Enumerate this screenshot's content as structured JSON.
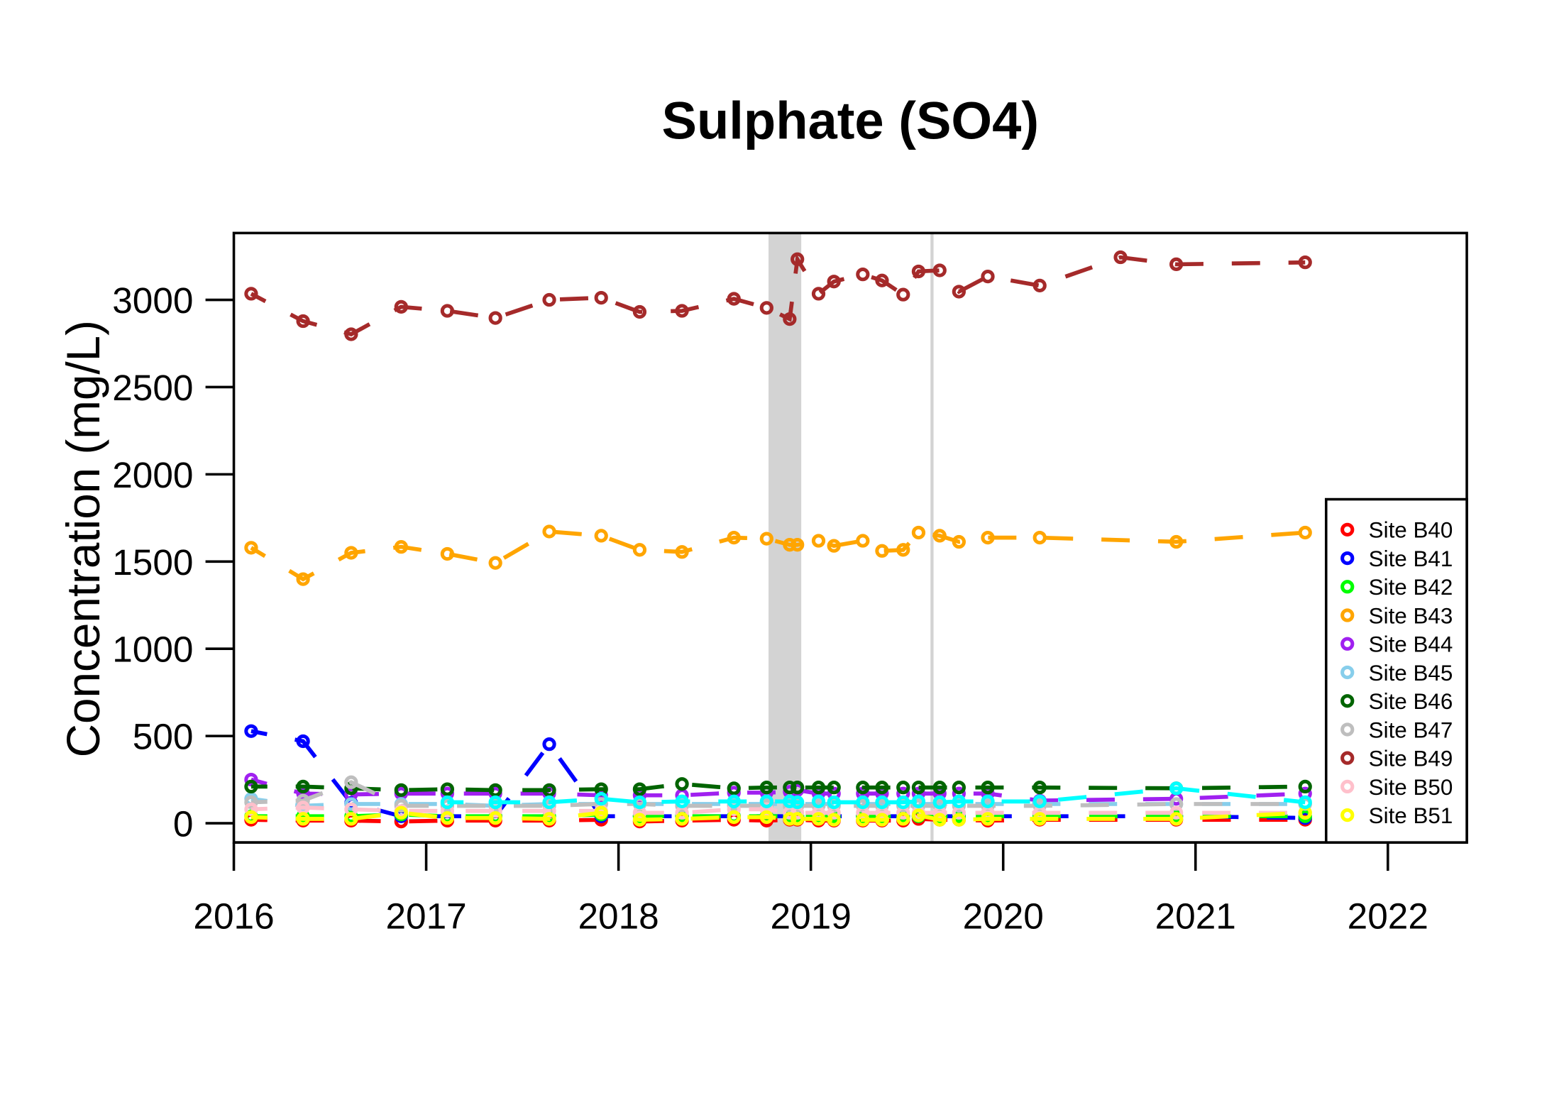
{
  "chart_data": {
    "type": "line",
    "title": "Sulphate (SO4)",
    "xlabel": "",
    "ylabel": "Concentration (mg/L)",
    "xlim": [
      2016,
      2022.4
    ],
    "ylim": [
      -100,
      3380
    ],
    "x_ticks": [
      "2016",
      "2017",
      "2018",
      "2019",
      "2020",
      "2021",
      "2022"
    ],
    "y_ticks": [
      "0",
      "500",
      "1000",
      "1500",
      "2000",
      "2500",
      "3000"
    ],
    "grid": false,
    "legend_position": "bottom-right",
    "shaded_period": {
      "from": 2018.78,
      "to": 2018.95,
      "color": "#d3d3d3"
    },
    "reference_line": {
      "x": 2019.63,
      "color": "#d3d3d3"
    },
    "x": [
      2016.09,
      2016.36,
      2016.61,
      2016.87,
      2017.11,
      2017.36,
      2017.64,
      2017.91,
      2018.11,
      2018.33,
      2018.6,
      2018.77,
      2018.89,
      2018.93,
      2019.04,
      2019.12,
      2019.27,
      2019.37,
      2019.48,
      2019.56,
      2019.67,
      2019.77,
      2019.92,
      2020.19,
      2020.9,
      2021.57
    ],
    "series": [
      {
        "name": "Site B40",
        "color": "#ff0000",
        "values": [
          20,
          15,
          15,
          10,
          15,
          15,
          15,
          20,
          10,
          15,
          20,
          15,
          20,
          20,
          15,
          15,
          15,
          15,
          15,
          25,
          20,
          20,
          15,
          20,
          20,
          20
        ]
      },
      {
        "name": "Site B41",
        "color": "#0000ff",
        "values": [
          528,
          470,
          116,
          40,
          40,
          40,
          453,
          40,
          40,
          40,
          40,
          40,
          40,
          40,
          40,
          40,
          40,
          40,
          40,
          40,
          40,
          40,
          40,
          40,
          40,
          30
        ]
      },
      {
        "name": "Site B42",
        "color": "#00ff00",
        "values": [
          40,
          40,
          40,
          50,
          40,
          40,
          40,
          50,
          40,
          40,
          40,
          40,
          40,
          40,
          40,
          40,
          40,
          40,
          40,
          40,
          40,
          40,
          40,
          40,
          40,
          40
        ]
      },
      {
        "name": "Site B43",
        "color": "#ffa500",
        "values": [
          1579,
          1399,
          1550,
          1584,
          1544,
          1492,
          1672,
          1648,
          1567,
          1555,
          1637,
          1631,
          1596,
          1596,
          1619,
          1590,
          1619,
          1561,
          1567,
          1666,
          1648,
          1613,
          1637,
          1637,
          1613,
          1666
        ]
      },
      {
        "name": "Site B44",
        "color": "#a020f0",
        "values": [
          250,
          170,
          165,
          170,
          170,
          170,
          170,
          160,
          160,
          160,
          175,
          175,
          180,
          190,
          170,
          170,
          170,
          170,
          170,
          170,
          170,
          170,
          170,
          130,
          140,
          170
        ]
      },
      {
        "name": "Site B45",
        "color": "#87ceeb",
        "values": [
          140,
          100,
          110,
          110,
          110,
          100,
          110,
          110,
          110,
          110,
          110,
          110,
          110,
          110,
          110,
          110,
          110,
          110,
          110,
          110,
          110,
          110,
          110,
          110,
          110,
          110
        ]
      },
      {
        "name": "Site B46",
        "color": "#006400",
        "values": [
          210,
          210,
          200,
          190,
          195,
          190,
          190,
          195,
          195,
          225,
          200,
          205,
          205,
          205,
          205,
          205,
          205,
          205,
          205,
          205,
          205,
          205,
          205,
          205,
          200,
          210
        ]
      },
      {
        "name": "Site B47",
        "color": "#bebebe",
        "values": [
          120,
          130,
          235,
          100,
          100,
          100,
          100,
          110,
          110,
          100,
          100,
          100,
          100,
          100,
          100,
          100,
          100,
          100,
          100,
          100,
          100,
          100,
          100,
          100,
          110,
          110
        ]
      },
      {
        "name": "Site B49",
        "color": "#a52a2a",
        "x": [
          2016.09,
          2016.36,
          2016.61,
          2016.87,
          2017.11,
          2017.36,
          2017.64,
          2017.91,
          2018.11,
          2018.33,
          2018.6,
          2018.77,
          2018.89,
          2018.93,
          2019.04,
          2019.12,
          2019.27,
          2019.37,
          2019.48,
          2019.56,
          2019.67,
          2019.77,
          2019.92,
          2020.19,
          2020.61,
          2020.9,
          2021.57
        ],
        "values": [
          3035,
          2878,
          2803,
          2960,
          2937,
          2896,
          3000,
          3012,
          2931,
          2937,
          3006,
          2954,
          2890,
          3233,
          3035,
          3105,
          3146,
          3111,
          3030,
          3163,
          3169,
          3047,
          3134,
          3082,
          3244,
          3204,
          3215
        ]
      },
      {
        "name": "Site B50",
        "color": "#ffc0cb",
        "values": [
          80,
          90,
          80,
          70,
          70,
          70,
          70,
          70,
          60,
          60,
          80,
          80,
          60,
          60,
          60,
          60,
          60,
          60,
          60,
          60,
          60,
          60,
          60,
          60,
          60,
          60
        ]
      },
      {
        "name": "Site B51",
        "color": "#ffff00",
        "values": [
          35,
          25,
          25,
          60,
          30,
          30,
          25,
          60,
          20,
          25,
          35,
          35,
          25,
          25,
          25,
          20,
          20,
          20,
          25,
          45,
          20,
          20,
          25,
          25,
          25,
          60
        ]
      },
      {
        "color": "#00ffff",
        "values": [
          null,
          null,
          null,
          null,
          120,
          120,
          120,
          140,
          120,
          125,
          125,
          125,
          125,
          120,
          125,
          120,
          120,
          120,
          120,
          125,
          120,
          125,
          125,
          125,
          200,
          120
        ]
      }
    ]
  }
}
